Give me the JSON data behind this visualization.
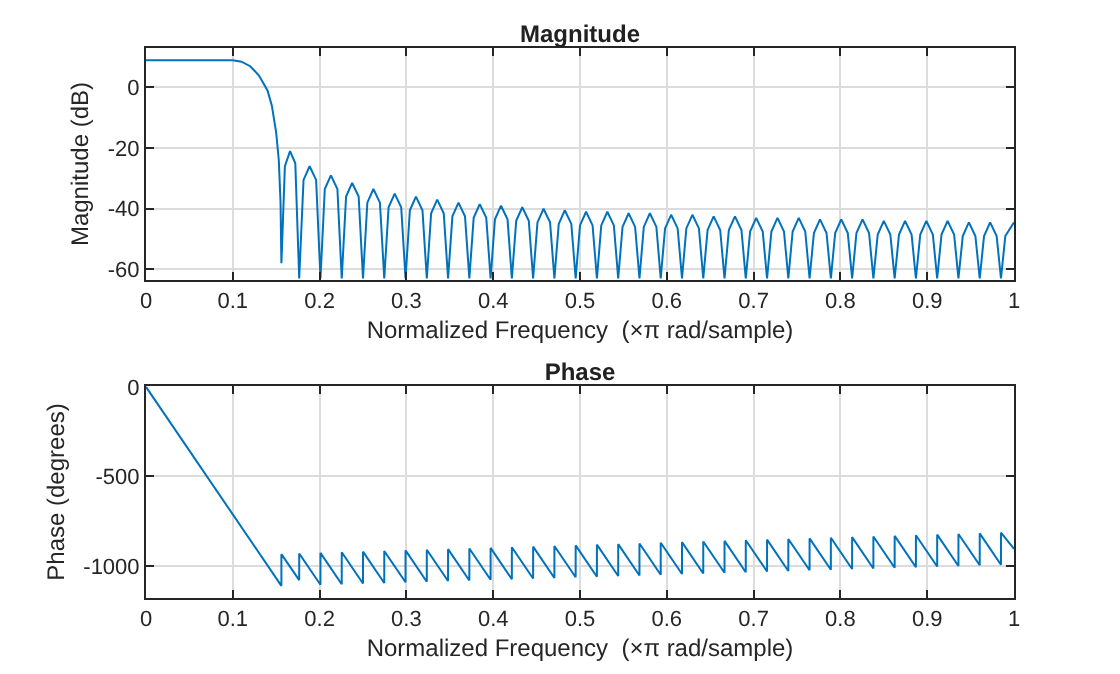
{
  "chart_data": [
    {
      "type": "line",
      "title": "Magnitude",
      "xlabel": "Normalized Frequency  (×π rad/sample)",
      "ylabel": "Magnitude (dB)",
      "xlim": [
        0,
        1
      ],
      "xticks": [
        0,
        0.1,
        0.2,
        0.3,
        0.4,
        0.5,
        0.6,
        0.7,
        0.8,
        0.9,
        1
      ],
      "ylim": [
        -63.5,
        13
      ],
      "yticks": [
        -60,
        -40,
        -20,
        0
      ],
      "grid": true,
      "x": [
        0,
        0.05,
        0.1,
        0.11,
        0.12,
        0.13,
        0.14,
        0.145,
        0.15,
        0.153,
        0.155,
        0.156,
        0.16,
        0.166,
        0.172,
        0.1765,
        0.1815,
        0.1885,
        0.196,
        0.201,
        0.206,
        0.213,
        0.2205,
        0.2255,
        0.2305,
        0.2375,
        0.245,
        0.25,
        0.255,
        0.262,
        0.2695,
        0.2745,
        0.2795,
        0.2865,
        0.294,
        0.299,
        0.304,
        0.311,
        0.3185,
        0.3235,
        0.3285,
        0.3355,
        0.343,
        0.348,
        0.353,
        0.36,
        0.3675,
        0.3725,
        0.3775,
        0.3845,
        0.392,
        0.397,
        0.402,
        0.409,
        0.4165,
        0.4215,
        0.4265,
        0.4335,
        0.441,
        0.446,
        0.451,
        0.458,
        0.4655,
        0.4705,
        0.4755,
        0.4825,
        0.49,
        0.495,
        0.5,
        0.507,
        0.5145,
        0.5195,
        0.5245,
        0.5315,
        0.539,
        0.544,
        0.549,
        0.556,
        0.5635,
        0.5685,
        0.5735,
        0.5805,
        0.588,
        0.593,
        0.598,
        0.605,
        0.6125,
        0.6175,
        0.6225,
        0.6295,
        0.637,
        0.642,
        0.647,
        0.654,
        0.6615,
        0.6665,
        0.6715,
        0.6785,
        0.686,
        0.691,
        0.696,
        0.703,
        0.7105,
        0.7155,
        0.7205,
        0.7275,
        0.735,
        0.74,
        0.745,
        0.752,
        0.7595,
        0.7645,
        0.7695,
        0.7765,
        0.784,
        0.789,
        0.794,
        0.801,
        0.8085,
        0.8135,
        0.8185,
        0.8255,
        0.833,
        0.838,
        0.843,
        0.85,
        0.8575,
        0.8625,
        0.8675,
        0.8745,
        0.882,
        0.887,
        0.892,
        0.899,
        0.9065,
        0.9115,
        0.9165,
        0.9235,
        0.931,
        0.936,
        0.941,
        0.948,
        0.9555,
        0.9605,
        0.9655,
        0.9725,
        0.98,
        0.985,
        0.99,
        1
      ],
      "series": [
        {
          "color": "#0072bd",
          "values": [
            9,
            9,
            9,
            8.5,
            7,
            4,
            -1,
            -6,
            -15,
            -24,
            -38,
            -58,
            -26,
            -21,
            -25,
            -63,
            -30.5,
            -26,
            -30.5,
            -63,
            -33.5,
            -29,
            -33.5,
            -63,
            -36,
            -31.5,
            -36,
            -63,
            -38,
            -33.5,
            -38,
            -63,
            -39.5,
            -35,
            -39.5,
            -63,
            -40.5,
            -36,
            -40.5,
            -63,
            -41.5,
            -37,
            -41.5,
            -63,
            -42.5,
            -38,
            -42.5,
            -63,
            -43,
            -38.5,
            -43,
            -63,
            -43.5,
            -39,
            -43.5,
            -63,
            -44,
            -39.5,
            -44,
            -63,
            -44.5,
            -40,
            -44.5,
            -63,
            -45,
            -40.5,
            -45,
            -63,
            -45.5,
            -41,
            -45.5,
            -63,
            -45.5,
            -41,
            -45.5,
            -63,
            -46,
            -41.5,
            -46,
            -63,
            -46,
            -41.5,
            -46,
            -63,
            -46.5,
            -42,
            -46.5,
            -63,
            -46.5,
            -42,
            -46.5,
            -63,
            -47,
            -42.5,
            -47,
            -63,
            -47,
            -42.5,
            -47,
            -63,
            -47.5,
            -43,
            -47.5,
            -63,
            -47.5,
            -43,
            -47.5,
            -63,
            -47.5,
            -43,
            -47.5,
            -63,
            -48,
            -43.5,
            -48,
            -63,
            -48,
            -43.5,
            -48,
            -63,
            -48,
            -43.5,
            -48,
            -63,
            -48.5,
            -44,
            -48.5,
            -63,
            -48.5,
            -44,
            -48.5,
            -63,
            -48.5,
            -44,
            -48.5,
            -63,
            -48.5,
            -44,
            -48.5,
            -63,
            -49,
            -44.5,
            -49,
            -63,
            -49,
            -44.5,
            -49,
            -63,
            -49,
            -44.5
          ]
        }
      ]
    },
    {
      "type": "line",
      "title": "Phase",
      "xlabel": "Normalized Frequency  (×π rad/sample)",
      "ylabel": "Phase (degrees)",
      "xlim": [
        0,
        1
      ],
      "xticks": [
        0,
        0.1,
        0.2,
        0.3,
        0.4,
        0.5,
        0.6,
        0.7,
        0.8,
        0.9,
        1
      ],
      "ylim": [
        -1180,
        5
      ],
      "yticks": [
        -1000,
        -500,
        0
      ],
      "grid": true,
      "x": [
        0,
        0.156,
        0.156,
        0.1765,
        0.1765,
        0.201,
        0.201,
        0.2255,
        0.2255,
        0.25,
        0.25,
        0.2745,
        0.2745,
        0.299,
        0.299,
        0.3235,
        0.3235,
        0.348,
        0.348,
        0.3725,
        0.3725,
        0.397,
        0.397,
        0.4215,
        0.4215,
        0.446,
        0.446,
        0.4705,
        0.4705,
        0.495,
        0.495,
        0.5195,
        0.5195,
        0.544,
        0.544,
        0.5685,
        0.5685,
        0.593,
        0.593,
        0.6175,
        0.6175,
        0.642,
        0.642,
        0.6665,
        0.6665,
        0.691,
        0.691,
        0.7155,
        0.7155,
        0.74,
        0.74,
        0.7645,
        0.7645,
        0.789,
        0.789,
        0.8135,
        0.8135,
        0.838,
        0.838,
        0.8625,
        0.8625,
        0.887,
        0.887,
        0.9115,
        0.9115,
        0.936,
        0.936,
        0.9605,
        0.9605,
        0.985,
        0.985,
        1
      ],
      "series": [
        {
          "color": "#0072bd",
          "values": [
            0,
            -1112,
            -935,
            -1080,
            -931,
            -1106,
            -928,
            -1103,
            -924,
            -1099,
            -921,
            -1096,
            -917,
            -1092,
            -914,
            -1089,
            -910,
            -1085,
            -907,
            -1082,
            -903,
            -1078,
            -900,
            -1075,
            -896,
            -1071,
            -893,
            -1068,
            -889,
            -1064,
            -886,
            -1061,
            -882,
            -1057,
            -879,
            -1054,
            -875,
            -1050,
            -871,
            -1046,
            -868,
            -1043,
            -864,
            -1039,
            -861,
            -1036,
            -857,
            -1032,
            -854,
            -1029,
            -850,
            -1025,
            -847,
            -1022,
            -843,
            -1018,
            -840,
            -1015,
            -836,
            -1011,
            -833,
            -1008,
            -829,
            -1004,
            -826,
            -1001,
            -822,
            -997,
            -819,
            -994,
            -815,
            -905
          ]
        }
      ]
    }
  ]
}
